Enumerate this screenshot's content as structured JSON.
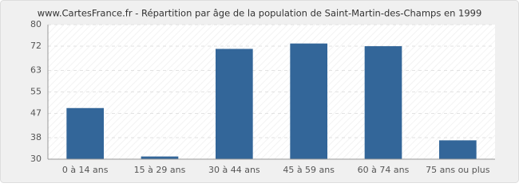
{
  "chart_data": {
    "type": "bar",
    "title": "www.CartesFrance.fr - Répartition par âge de la population de Saint-Martin-des-Champs en 1999",
    "categories": [
      "0 à 14 ans",
      "15 à 29 ans",
      "30 à 44 ans",
      "45 à 59 ans",
      "60 à 74 ans",
      "75 ans ou plus"
    ],
    "values": [
      49,
      31,
      71,
      73,
      72,
      37
    ],
    "color": "#336699",
    "ylim": [
      30,
      80
    ],
    "yticks": [
      30,
      38,
      47,
      55,
      63,
      72,
      80
    ],
    "grid": true
  }
}
